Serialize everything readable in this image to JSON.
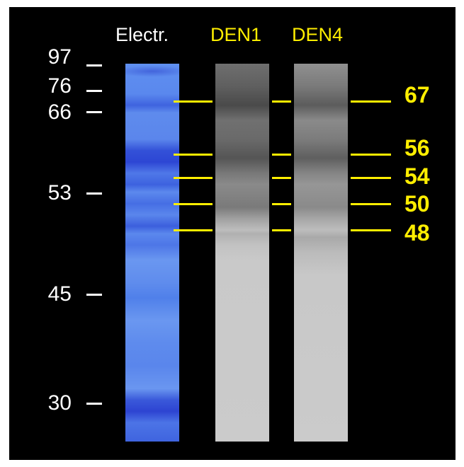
{
  "lanes": {
    "electr": "Electr.",
    "den1": "DEN1",
    "den4": "DEN4"
  },
  "markers": [
    "97",
    "76",
    "66",
    "53",
    "45",
    "30"
  ],
  "bands": [
    "67",
    "56",
    "54",
    "50",
    "48"
  ],
  "colors": {
    "background": "#000000",
    "marker_text": "#ffffff",
    "band_label": "#ffee00",
    "electr_lane": "#5a86ec",
    "immunoblot_lane": "#cbcbcb"
  }
}
